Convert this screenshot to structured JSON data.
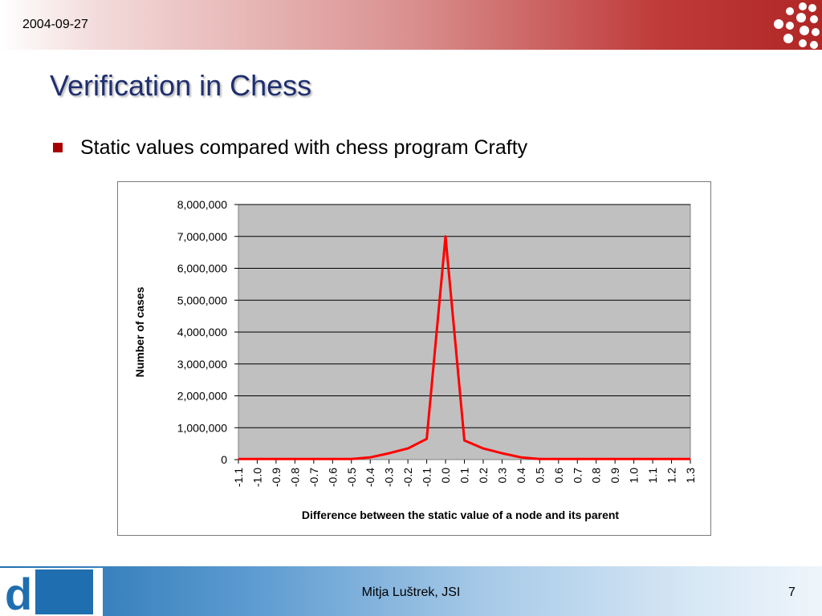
{
  "header": {
    "date": "2004-09-27"
  },
  "slide": {
    "title": "Verification in Chess",
    "bullets": [
      "Static values compared with chess program Crafty"
    ]
  },
  "footer": {
    "author": "Mitja Luštrek, JSI",
    "page": "7",
    "logo_text": "dis"
  },
  "colors": {
    "title": "#1f2f6e",
    "bullet": "#a80000",
    "line": "#ff0000",
    "plot_bg": "#c0c0c0"
  },
  "chart_data": {
    "type": "line",
    "x": [
      "-1.1",
      "-1.0",
      "-0.9",
      "-0.8",
      "-0.7",
      "-0.6",
      "-0.5",
      "-0.4",
      "-0.3",
      "-0.2",
      "-0.1",
      "0.0",
      "0.1",
      "0.2",
      "0.3",
      "0.4",
      "0.5",
      "0.6",
      "0.7",
      "0.8",
      "0.9",
      "1.0",
      "1.1",
      "1.2",
      "1.3"
    ],
    "series": [
      {
        "values": [
          20000,
          20000,
          20000,
          20000,
          20000,
          20000,
          20000,
          70000,
          200000,
          350000,
          650000,
          7000000,
          600000,
          350000,
          200000,
          70000,
          20000,
          20000,
          20000,
          20000,
          20000,
          20000,
          20000,
          20000,
          20000
        ]
      }
    ],
    "ylim": [
      0,
      8000000
    ],
    "yticks": [
      "0",
      "1,000,000",
      "2,000,000",
      "3,000,000",
      "4,000,000",
      "5,000,000",
      "6,000,000",
      "7,000,000",
      "8,000,000"
    ],
    "xlabel": "Difference between the static value of a node and its parent",
    "ylabel": "Number of cases",
    "grid": true
  }
}
